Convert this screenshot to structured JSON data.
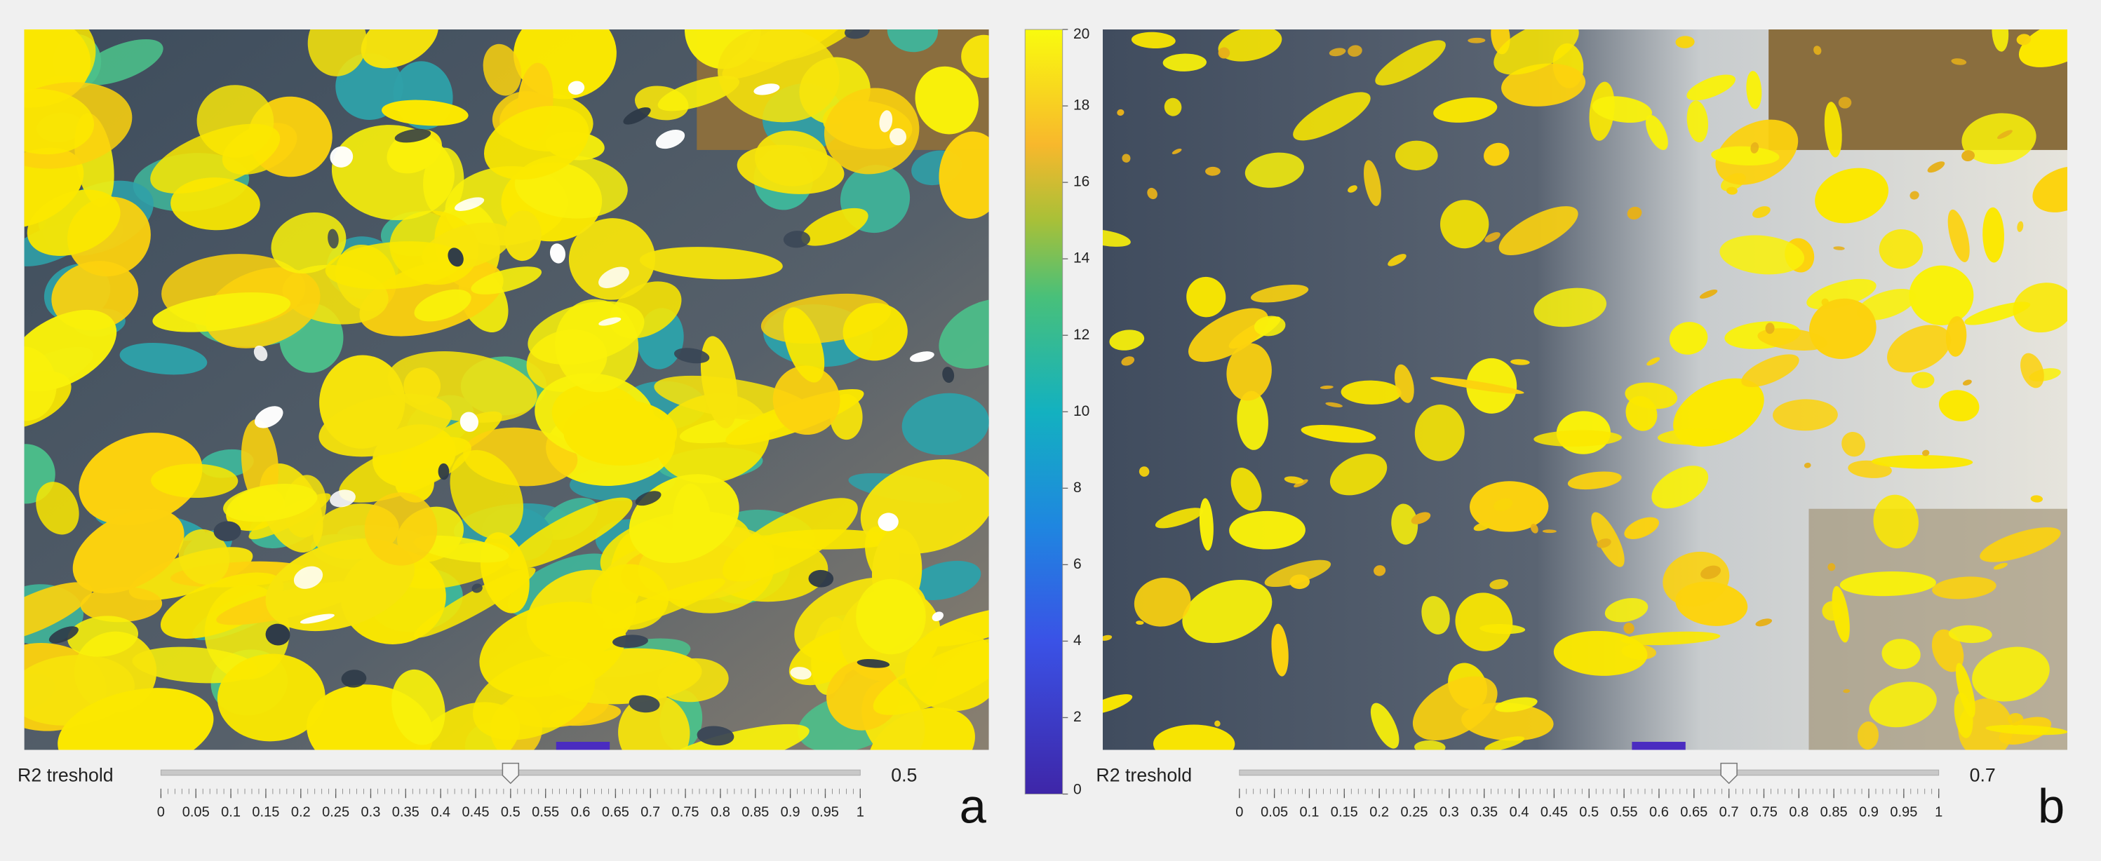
{
  "colorbar": {
    "ylim": [
      0,
      20
    ],
    "yticks": [
      0,
      2,
      4,
      6,
      8,
      10,
      12,
      14,
      16,
      18,
      20
    ]
  },
  "panels": [
    {
      "letter": "a",
      "slider": {
        "label": "R2 treshold",
        "value": 0.5,
        "range": [
          0,
          1
        ],
        "ticks": [
          0,
          0.05,
          0.1,
          0.15,
          0.2,
          0.25,
          0.3,
          0.35,
          0.4,
          0.45,
          0.5,
          0.55,
          0.6,
          0.65,
          0.7,
          0.75,
          0.8,
          0.85,
          0.9,
          0.95,
          1
        ]
      }
    },
    {
      "letter": "b",
      "slider": {
        "label": "R2 treshold",
        "value": 0.7,
        "range": [
          0,
          1
        ],
        "ticks": [
          0,
          0.05,
          0.1,
          0.15,
          0.2,
          0.25,
          0.3,
          0.35,
          0.4,
          0.45,
          0.5,
          0.55,
          0.6,
          0.65,
          0.7,
          0.75,
          0.8,
          0.85,
          0.9,
          0.95,
          1
        ]
      }
    }
  ]
}
